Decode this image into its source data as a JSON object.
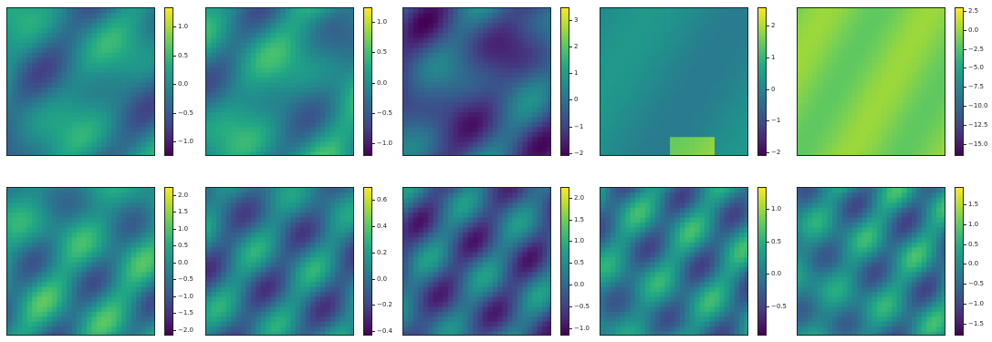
{
  "chart_data": [
    {
      "type": "heatmap",
      "colormap": "viridis",
      "colorbar": {
        "ticks": [
          "−1.0",
          "−0.5",
          "0.0",
          "0.5",
          "1.0"
        ],
        "values": [
          -1.0,
          -0.5,
          0.0,
          0.5,
          1.0
        ],
        "range": [
          -1.25,
          1.35
        ]
      },
      "field": {
        "base": -0.1,
        "seed": 1,
        "features": "diagonal streaks"
      }
    },
    {
      "type": "heatmap",
      "colormap": "viridis",
      "colorbar": {
        "ticks": [
          "−1.0",
          "−0.5",
          "0.0",
          "0.5",
          "1.0"
        ],
        "values": [
          -1.0,
          -0.5,
          0.0,
          0.5,
          1.0
        ],
        "range": [
          -1.2,
          1.25
        ]
      },
      "field": {
        "base": 0.0,
        "seed": 2,
        "features": "smooth blobs"
      }
    },
    {
      "type": "heatmap",
      "colormap": "viridis",
      "colorbar": {
        "ticks": [
          "−2",
          "−1",
          "0",
          "1",
          "2",
          "3"
        ],
        "values": [
          -2,
          -1,
          0,
          1,
          2,
          3
        ],
        "range": [
          -2.1,
          3.5
        ]
      },
      "field": {
        "base": -0.4,
        "seed": 3,
        "features": "fine ridges"
      }
    },
    {
      "type": "heatmap",
      "colormap": "viridis",
      "colorbar": {
        "ticks": [
          "−2",
          "−1",
          "0",
          "1",
          "2"
        ],
        "values": [
          -2,
          -1,
          0,
          1,
          2
        ],
        "range": [
          -2.1,
          2.6
        ]
      },
      "field": {
        "base": -0.1,
        "seed": 4,
        "features": "uniform with bright bottom arc"
      }
    },
    {
      "type": "heatmap",
      "colormap": "viridis",
      "colorbar": {
        "ticks": [
          "−15.0",
          "−12.5",
          "−10.0",
          "−7.5",
          "−5.0",
          "−2.5",
          "0.0",
          "2.5"
        ],
        "values": [
          -15.0,
          -12.5,
          -10.0,
          -7.5,
          -5.0,
          -2.5,
          0.0,
          2.5
        ],
        "range": [
          -16.5,
          3.0
        ]
      },
      "field": {
        "base": 0.5,
        "seed": 5,
        "features": "near-uniform with dark vortex"
      }
    },
    {
      "type": "heatmap",
      "colormap": "viridis",
      "colorbar": {
        "ticks": [
          "−2.0",
          "−1.5",
          "−1.0",
          "−0.5",
          "0.0",
          "0.5",
          "1.0",
          "1.5",
          "2.0"
        ],
        "values": [
          -2.0,
          -1.5,
          -1.0,
          -0.5,
          0.0,
          0.5,
          1.0,
          1.5,
          2.0
        ],
        "range": [
          -2.15,
          2.25
        ]
      },
      "field": {
        "base": 0.0,
        "seed": 6,
        "features": "diagonal streaks"
      }
    },
    {
      "type": "heatmap",
      "colormap": "viridis",
      "colorbar": {
        "ticks": [
          "−0.4",
          "−0.2",
          "0.0",
          "0.2",
          "0.4",
          "0.6"
        ],
        "values": [
          -0.4,
          -0.2,
          0.0,
          0.2,
          0.4,
          0.6
        ],
        "range": [
          -0.43,
          0.7
        ]
      },
      "field": {
        "base": 0.05,
        "seed": 7,
        "features": "bright upper-left gradient"
      }
    },
    {
      "type": "heatmap",
      "colormap": "viridis",
      "colorbar": {
        "ticks": [
          "−1.0",
          "−0.5",
          "0.0",
          "0.5",
          "1.0",
          "1.5",
          "2.0"
        ],
        "values": [
          -1.0,
          -0.5,
          0.0,
          0.5,
          1.0,
          1.5,
          2.0
        ],
        "range": [
          -1.15,
          2.25
        ]
      },
      "field": {
        "base": -0.1,
        "seed": 8,
        "features": "diagonal ridges"
      }
    },
    {
      "type": "heatmap",
      "colormap": "viridis",
      "colorbar": {
        "ticks": [
          "−0.5",
          "0.0",
          "0.5",
          "1.0"
        ],
        "values": [
          -0.5,
          0.0,
          0.5,
          1.0
        ],
        "range": [
          -0.95,
          1.35
        ]
      },
      "field": {
        "base": 0.1,
        "seed": 9,
        "features": "fine waves"
      }
    },
    {
      "type": "heatmap",
      "colormap": "viridis",
      "colorbar": {
        "ticks": [
          "−1.5",
          "−1.0",
          "−0.5",
          "0.0",
          "0.5",
          "1.0",
          "1.5"
        ],
        "values": [
          -1.5,
          -1.0,
          -0.5,
          0.0,
          0.5,
          1.0,
          1.5
        ],
        "range": [
          -1.8,
          1.95
        ]
      },
      "field": {
        "base": -0.1,
        "seed": 10,
        "features": "smooth with bright vortex upper-right"
      }
    }
  ]
}
